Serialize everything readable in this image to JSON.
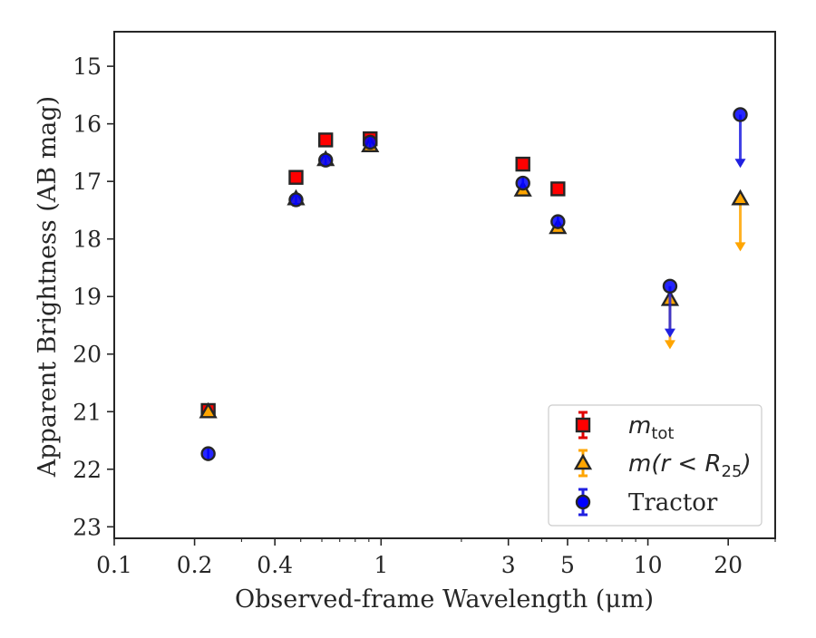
{
  "chart_data": {
    "type": "scatter",
    "xlabel": "Observed-frame Wavelength (μm)",
    "ylabel": "Apparent Brightness (AB mag)",
    "xscale": "log",
    "yscale": "linear",
    "y_inverted": true,
    "xlim": [
      0.1,
      30
    ],
    "ylim": [
      23.2,
      14.4
    ],
    "x_ticks": [
      0.1,
      0.2,
      0.4,
      1,
      3,
      5,
      10,
      20
    ],
    "x_tick_labels": [
      "0.1",
      "0.2",
      "0.4",
      "1",
      "3",
      "5",
      "10",
      "20"
    ],
    "y_ticks": [
      15,
      16,
      17,
      18,
      19,
      20,
      21,
      22,
      23
    ],
    "y_tick_labels": [
      "15",
      "16",
      "17",
      "18",
      "19",
      "20",
      "21",
      "22",
      "23"
    ],
    "grid": false,
    "legend_position": "lower-right",
    "series": [
      {
        "name": "m_tot",
        "legend_label": "m_tot",
        "marker": "square",
        "color": "#ff0000",
        "error_color": "#e00000",
        "points": [
          {
            "x": 0.225,
            "y": 20.98
          },
          {
            "x": 0.48,
            "y": 16.93
          },
          {
            "x": 0.62,
            "y": 16.28
          },
          {
            "x": 0.91,
            "y": 16.26
          },
          {
            "x": 3.4,
            "y": 16.7
          },
          {
            "x": 4.6,
            "y": 17.13
          }
        ]
      },
      {
        "name": "m(r<R25)",
        "legend_label": "m(r < R25)",
        "marker": "triangle",
        "color": "#ffa500",
        "error_color": "#ffa500",
        "points": [
          {
            "x": 0.225,
            "y": 21.0
          },
          {
            "x": 0.48,
            "y": 17.3
          },
          {
            "x": 0.62,
            "y": 16.62
          },
          {
            "x": 0.91,
            "y": 16.38
          },
          {
            "x": 3.4,
            "y": 17.15
          },
          {
            "x": 4.6,
            "y": 17.8
          },
          {
            "x": 12.1,
            "y": 19.05,
            "upper_limit": true,
            "limit_to": 19.9
          },
          {
            "x": 22.2,
            "y": 17.3,
            "upper_limit": true,
            "limit_to": 18.2
          }
        ]
      },
      {
        "name": "Tractor",
        "legend_label": "Tractor",
        "marker": "circle",
        "color": "#0000ff",
        "error_color": "#2020e0",
        "points": [
          {
            "x": 0.225,
            "y": 21.73
          },
          {
            "x": 0.48,
            "y": 17.32
          },
          {
            "x": 0.62,
            "y": 16.63
          },
          {
            "x": 0.91,
            "y": 16.32
          },
          {
            "x": 3.4,
            "y": 17.03
          },
          {
            "x": 4.6,
            "y": 17.7
          },
          {
            "x": 12.1,
            "y": 18.82,
            "upper_limit": true,
            "limit_to": 19.7
          },
          {
            "x": 22.2,
            "y": 15.84,
            "upper_limit": true,
            "limit_to": 16.75
          }
        ]
      }
    ]
  }
}
